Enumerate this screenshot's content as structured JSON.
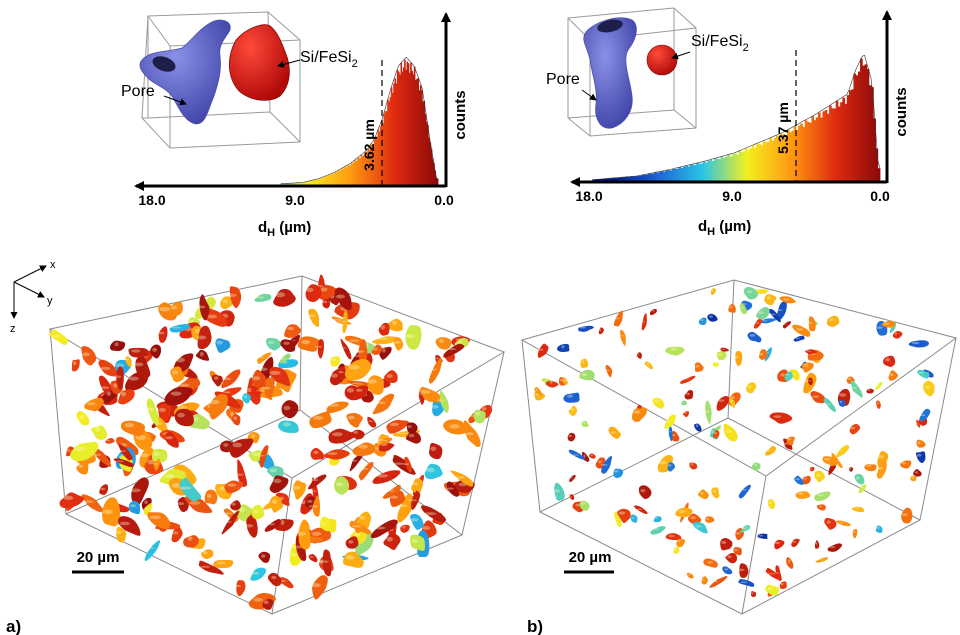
{
  "panel_a": {
    "panel_label": "a)",
    "threshold_label": "3.62 µm",
    "ylabel": "counts",
    "xlabel_main": "d",
    "xlabel_sub": "H",
    "xlabel_unit": " (µm)",
    "ticks": [
      "18.0",
      "9.0",
      "0.0"
    ],
    "inset_pore_label": "Pore",
    "inset_particle_label_main": "Si/FeSi",
    "inset_particle_label_sub": "2",
    "scale_bar": "20 µm"
  },
  "panel_b": {
    "panel_label": "b)",
    "threshold_label": "5.37 µm",
    "ylabel": "counts",
    "xlabel_main": "d",
    "xlabel_sub": "H",
    "xlabel_unit": " (µm)",
    "ticks": [
      "18.0",
      "9.0",
      "0.0"
    ],
    "inset_pore_label": "Pore",
    "inset_particle_label_main": "Si/FeSi",
    "inset_particle_label_sub": "2",
    "scale_bar": "20 µm"
  },
  "axes_triad": {
    "x": "x",
    "y": "y",
    "z": "z"
  },
  "colors": {
    "pore": "#5f64c8",
    "particle": "#e01010",
    "colormap": [
      "#001a8c",
      "#1e63d6",
      "#28c4e6",
      "#f3f020",
      "#ff9a10",
      "#e02a10",
      "#8a0a0a"
    ]
  },
  "chart_data": [
    {
      "type": "bar",
      "title": "",
      "xlabel": "dH (µm)",
      "ylabel": "counts",
      "xlim": [
        18.0,
        0.0
      ],
      "x_reversed": true,
      "threshold": 3.62,
      "x": [
        9.9,
        8.5,
        7.5,
        6.5,
        5.5,
        4.5,
        4.0,
        3.5,
        3.0,
        2.5,
        2.0,
        1.5,
        1.0,
        0.5,
        0.1
      ],
      "values": [
        0.01,
        0.02,
        0.05,
        0.1,
        0.17,
        0.27,
        0.36,
        0.52,
        0.74,
        0.93,
        1.0,
        0.93,
        0.76,
        0.35,
        0.05
      ]
    },
    {
      "type": "bar",
      "title": "",
      "xlabel": "dH (µm)",
      "ylabel": "counts",
      "xlim": [
        18.0,
        0.0
      ],
      "x_reversed": true,
      "threshold": 5.37,
      "x": [
        17.8,
        15.0,
        13.0,
        11.0,
        9.0,
        7.5,
        6.0,
        5.0,
        4.0,
        3.0,
        2.0,
        1.5,
        1.0,
        0.5,
        0.1
      ],
      "values": [
        0.01,
        0.04,
        0.09,
        0.15,
        0.22,
        0.3,
        0.38,
        0.45,
        0.52,
        0.6,
        0.68,
        0.87,
        1.0,
        0.78,
        0.1
      ]
    }
  ]
}
